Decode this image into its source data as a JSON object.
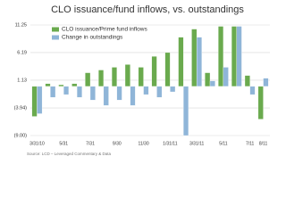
{
  "chart_data": {
    "type": "bar",
    "title": "CLO issuance/fund inflows, vs. outstandings",
    "categories": [
      "3/31/10",
      null,
      "5/31",
      null,
      "7/31",
      null,
      "9/30",
      null,
      "11/30",
      null,
      "1/31/11",
      null,
      "3/31/11",
      null,
      "5/11",
      null,
      "7/11",
      "8/11"
    ],
    "series": [
      {
        "name": "CLO issuance/Prime fund inflows",
        "color": "#6aaa4e",
        "values": [
          -5.5,
          0.5,
          0.3,
          0.5,
          2.5,
          3,
          3.5,
          4,
          3.5,
          5.5,
          6.2,
          9,
          10.5,
          2.5,
          11,
          11,
          2,
          -6
        ]
      },
      {
        "name": "Change in outstandings",
        "color": "#8fb5d8",
        "values": [
          -5,
          -2,
          -1.5,
          -2,
          -2.5,
          -3.5,
          -2.5,
          -3.5,
          -1.5,
          -2,
          -1,
          -9,
          9,
          1,
          3.5,
          11,
          -1.5,
          1.5
        ]
      }
    ],
    "ylim": [
      -9,
      11.25
    ],
    "yticks": [
      11.25,
      6.19,
      1.13,
      {
        "value": -3.94,
        "label": "(3.94)"
      },
      {
        "value": -9,
        "label": "(9.00)"
      }
    ],
    "grid": true,
    "source": "Source: LCD – Leveraged Commentary & Data"
  }
}
